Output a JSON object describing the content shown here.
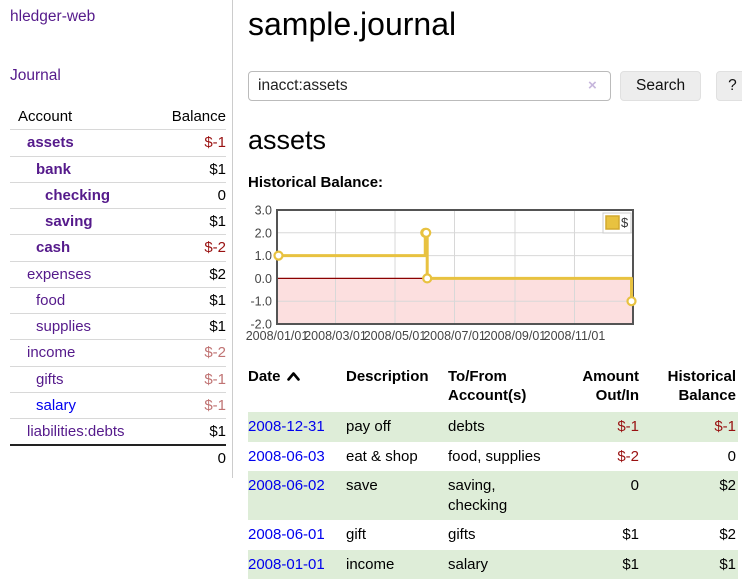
{
  "app": {
    "brand": "hledger-web"
  },
  "sidebar": {
    "nav_journal": "Journal",
    "accounts_table": {
      "headers": {
        "account": "Account",
        "balance": "Balance"
      },
      "rows": [
        {
          "name": "assets",
          "level": 1,
          "bold": true,
          "link": "visited",
          "balance": "$-1",
          "balance_class": "neg"
        },
        {
          "name": "bank",
          "level": 2,
          "bold": true,
          "link": "visited",
          "balance": "$1",
          "balance_class": ""
        },
        {
          "name": "checking",
          "level": 3,
          "bold": true,
          "link": "visited",
          "balance": "0",
          "balance_class": ""
        },
        {
          "name": "saving",
          "level": 3,
          "bold": true,
          "link": "visited",
          "balance": "$1",
          "balance_class": ""
        },
        {
          "name": "cash",
          "level": 2,
          "bold": true,
          "link": "visited",
          "balance": "$-2",
          "balance_class": "neg"
        },
        {
          "name": "expenses",
          "level": 1,
          "bold": false,
          "link": "visited",
          "balance": "$2",
          "balance_class": ""
        },
        {
          "name": "food",
          "level": 2,
          "bold": false,
          "link": "visited",
          "balance": "$1",
          "balance_class": ""
        },
        {
          "name": "supplies",
          "level": 2,
          "bold": false,
          "link": "visited",
          "balance": "$1",
          "balance_class": ""
        },
        {
          "name": "income",
          "level": 1,
          "bold": false,
          "link": "visited",
          "balance": "$-2",
          "balance_class": "negsoft"
        },
        {
          "name": "gifts",
          "level": 2,
          "bold": false,
          "link": "visited",
          "balance": "$-1",
          "balance_class": "negsoft"
        },
        {
          "name": "salary",
          "level": 2,
          "bold": false,
          "link": "unvisited",
          "balance": "$-1",
          "balance_class": "negsoft"
        },
        {
          "name": "liabilities:debts",
          "level": 1,
          "bold": false,
          "link": "visited",
          "balance": "$1",
          "balance_class": ""
        }
      ],
      "total": "0"
    }
  },
  "header": {
    "title": "sample.journal"
  },
  "search": {
    "value": "inacct:assets",
    "clear_icon": "×",
    "button": "Search",
    "help_button": "?"
  },
  "account_page": {
    "title": "assets",
    "chart_label": "Historical Balance:"
  },
  "chart_data": {
    "type": "line",
    "title": "Historical Balance:",
    "series": [
      {
        "name": "$",
        "color": "#e8c240",
        "step": true,
        "points": [
          [
            "2008-01-01",
            1
          ],
          [
            "2008-06-01",
            2
          ],
          [
            "2008-06-02",
            2
          ],
          [
            "2008-06-03",
            0
          ],
          [
            "2008-12-31",
            -1
          ]
        ]
      }
    ],
    "x_ticks": [
      "2008/01/01",
      "2008/03/01",
      "2008/05/01",
      "2008/07/01",
      "2008/09/01",
      "2008/11/01"
    ],
    "y_ticks": [
      3.0,
      2.0,
      1.0,
      0.0,
      -1.0,
      -2.0
    ],
    "ylim": [
      -2,
      3
    ],
    "x_range": [
      "2008-01-01",
      "2008-12-31"
    ],
    "grid": true,
    "legend_position": "top-right",
    "negative_region_color": "#fcdfdf",
    "zero_line_color": "#8b0000",
    "border_color": "#545454",
    "grid_color": "#d8d8d8"
  },
  "register": {
    "headers": {
      "date": "Date",
      "description": "Description",
      "accounts": "To/From\nAccount(s)",
      "amount": "Amount\nOut/In",
      "balance": "Historical\nBalance"
    },
    "sort_icon": "caret-up",
    "rows": [
      {
        "date": "2008-12-31",
        "description": "pay off",
        "accounts": "debts",
        "amount": "$-1",
        "amount_negative": true,
        "balance": "$-1",
        "balance_negative": true
      },
      {
        "date": "2008-06-03",
        "description": "eat & shop",
        "accounts": "food, supplies",
        "amount": "$-2",
        "amount_negative": true,
        "balance": "0",
        "balance_negative": false
      },
      {
        "date": "2008-06-02",
        "description": "save",
        "accounts": "saving,\nchecking",
        "amount": "0",
        "amount_negative": false,
        "balance": "$2",
        "balance_negative": false
      },
      {
        "date": "2008-06-01",
        "description": "gift",
        "accounts": "gifts",
        "amount": "$1",
        "amount_negative": false,
        "balance": "$2",
        "balance_negative": false
      },
      {
        "date": "2008-01-01",
        "description": "income",
        "accounts": "salary",
        "amount": "$1",
        "amount_negative": false,
        "balance": "$1",
        "balance_negative": false
      }
    ]
  },
  "colors": {
    "link_visited_purple": "#551a8b",
    "link_blue": "#0000ee",
    "negative_strong": "#991111",
    "negative_soft": "#c07373",
    "row_stripe_green": "#deedd8",
    "series_gold": "#e8c240"
  }
}
